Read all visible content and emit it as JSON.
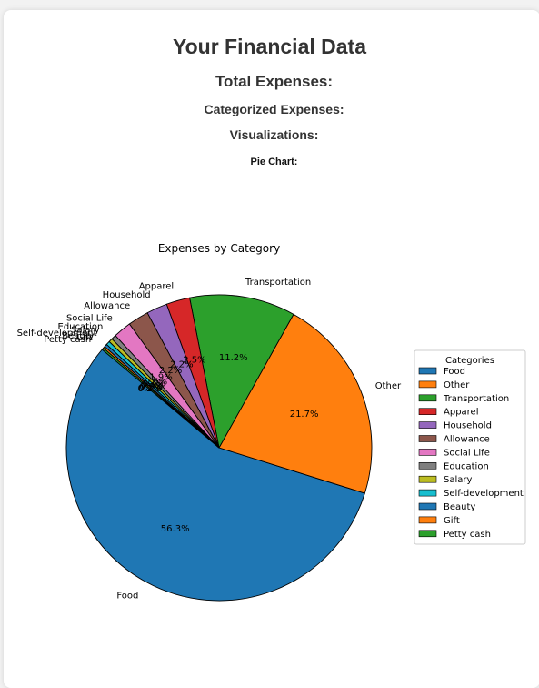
{
  "page": {
    "title": "Your Financial Data",
    "total_expenses_heading": "Total Expenses:",
    "categorized_heading": "Categorized Expenses:",
    "visualizations_heading": "Visualizations:",
    "pie_heading": "Pie Chart:"
  },
  "chart_data": {
    "type": "pie",
    "title": "Expenses by Category",
    "legend_title": "Categories",
    "legend_position": "right",
    "start_angle_deg": 140,
    "categories": [
      "Food",
      "Other",
      "Transportation",
      "Apparel",
      "Household",
      "Allowance",
      "Social Life",
      "Education",
      "Salary",
      "Self-development",
      "Beauty",
      "Gift",
      "Petty cash"
    ],
    "values": [
      56.3,
      21.7,
      11.2,
      2.5,
      2.2,
      2.2,
      1.9,
      0.5,
      0.4,
      0.4,
      0.3,
      0.2,
      0.2
    ],
    "pct_labels": [
      "56.3%",
      "21.7%",
      "11.2%",
      "2.5%",
      "2.2%",
      "2.2%",
      "1.9%",
      "0.5%",
      "0.4%",
      "0.4%",
      "0.3%",
      "0.2%",
      "0.2%"
    ],
    "colors": [
      "#1f77b4",
      "#ff7f0e",
      "#2ca02c",
      "#d62728",
      "#9467bd",
      "#8c564b",
      "#e377c2",
      "#7f7f7f",
      "#bcbd22",
      "#17becf",
      "#1f77b4",
      "#ff7f0e",
      "#2ca02c"
    ]
  }
}
